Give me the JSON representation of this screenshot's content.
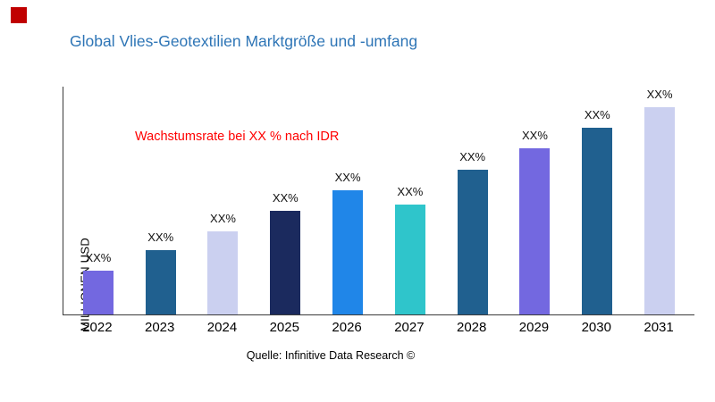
{
  "brand": {
    "square_color": "#C00000"
  },
  "title": "Global Vlies-Geotextilien Marktgröße und -umfang",
  "annotation": {
    "text": "Wachstumsrate bei XX % nach IDR",
    "color": "#FF0000"
  },
  "source": "Quelle: Infinitive Data Research ©",
  "chart_data": {
    "type": "bar",
    "title": "Global Vlies-Geotextilien Marktgröße und -umfang",
    "ylabel": "MILLIONEN USD",
    "xlabel": "",
    "categories": [
      "2022",
      "2023",
      "2024",
      "2025",
      "2026",
      "2027",
      "2028",
      "2029",
      "2030",
      "2031"
    ],
    "values": [
      21,
      31,
      40,
      50,
      60,
      53,
      70,
      80,
      90,
      100
    ],
    "value_labels": [
      "XX%",
      "XX%",
      "XX%",
      "XX%",
      "XX%",
      "XX%",
      "XX%",
      "XX%",
      "XX%",
      "XX%"
    ],
    "bar_colors": [
      "#7368E0",
      "#20608F",
      "#CBD0F0",
      "#1B2A5E",
      "#2086E8",
      "#2FC5CB",
      "#20608F",
      "#7368E0",
      "#20608F",
      "#CBD0F0"
    ],
    "ylim": [
      0,
      100
    ],
    "grid": false,
    "legend": false,
    "y_tick_labels_shown": false
  }
}
